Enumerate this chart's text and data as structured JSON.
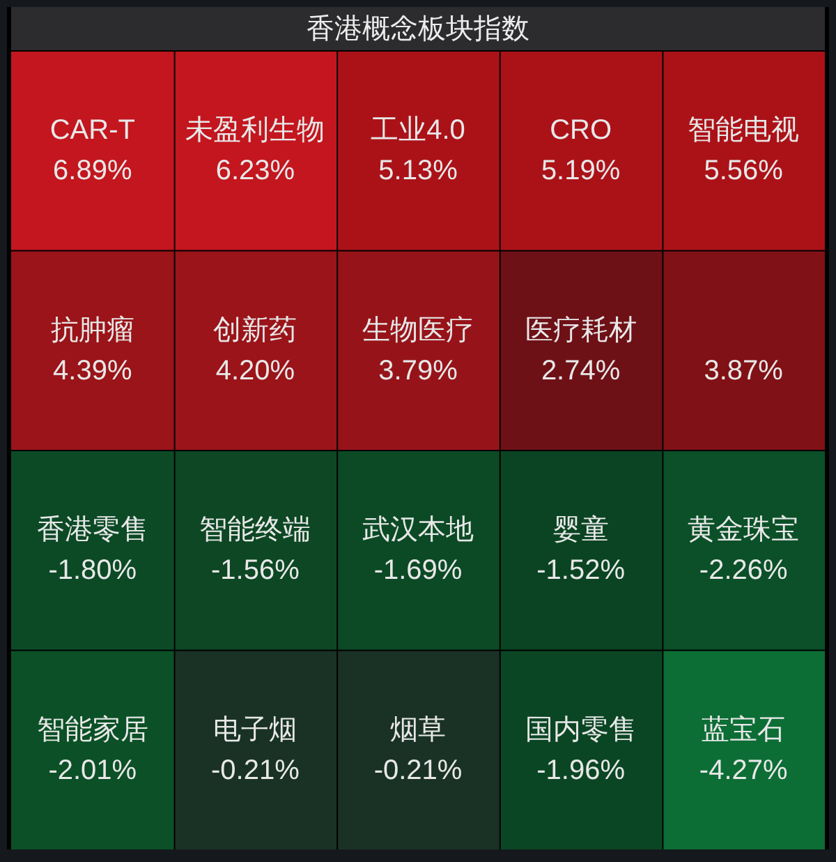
{
  "chart_data": {
    "type": "other",
    "title": "香港概念板块指数",
    "categories": [
      "CAR-T",
      "未盈利生物",
      "工业4.0",
      "CRO",
      "智能电视",
      "抗肿瘤",
      "创新药",
      "生物医疗",
      "医疗耗材",
      null,
      "香港零售",
      "智能终端",
      "武汉本地",
      "婴童",
      "黄金珠宝",
      "智能家居",
      "电子烟",
      "烟草",
      "国内零售",
      "蓝宝石"
    ],
    "values": [
      6.89,
      6.23,
      5.13,
      5.19,
      5.56,
      4.39,
      4.2,
      3.79,
      2.74,
      3.87,
      -1.8,
      -1.56,
      -1.69,
      -1.52,
      -2.26,
      -2.01,
      -0.21,
      -0.21,
      -1.96,
      -4.27
    ],
    "value_labels": [
      "6.89%",
      "6.23%",
      "5.13%",
      "5.19%",
      "5.56%",
      "4.39%",
      "4.20%",
      "3.79%",
      "2.74%",
      "3.87%",
      "-1.80%",
      "-1.56%",
      "-1.69%",
      "-1.52%",
      "-2.26%",
      "-2.01%",
      "-0.21%",
      "-0.21%",
      "-1.96%",
      "-4.27%"
    ],
    "colors": [
      "#c3161e",
      "#c3161e",
      "#ab1218",
      "#ab1218",
      "#ab1218",
      "#9a1419",
      "#9a1419",
      "#961419",
      "#6e1117",
      "#801116",
      "#0c4a26",
      "#0d4724",
      "#0b4a25",
      "#0b4422",
      "#0b5028",
      "#0b5026",
      "#1a3226",
      "#1a3226",
      "#0b4624",
      "#0c6e35"
    ]
  }
}
